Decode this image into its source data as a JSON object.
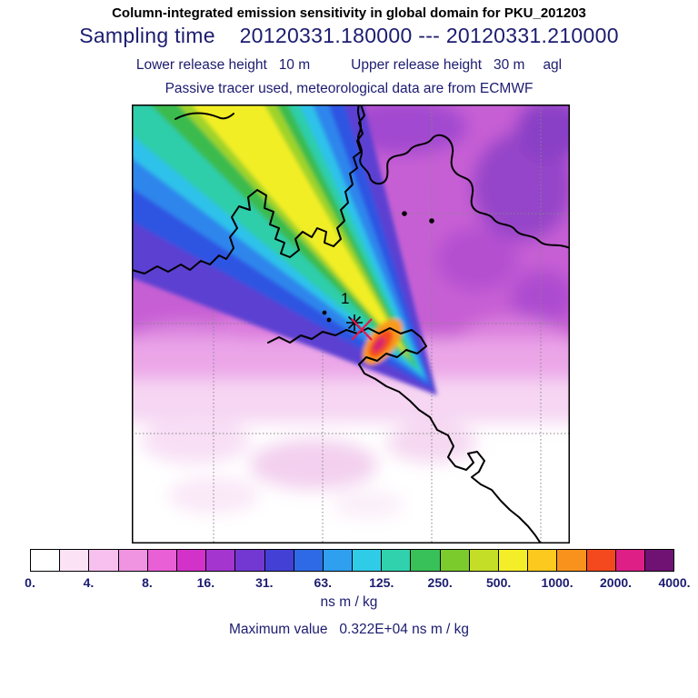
{
  "header": {
    "title": "Column-integrated emission sensitivity in global domain for PKU_201203",
    "sampling_line": "Sampling time    20120331.180000 --- 20120331.210000",
    "lower_release": "Lower release height   10 m",
    "upper_release": "Upper release height   30 m",
    "agl": "agl",
    "tracer_line": "Passive tracer used, meteorological data are from ECMWF"
  },
  "map": {
    "release_point_label": "1"
  },
  "colorbar": {
    "labels": [
      "0.",
      "4.",
      "8.",
      "16.",
      "31.",
      "63.",
      "125.",
      "250.",
      "500.",
      "1000.",
      "2000.",
      "4000."
    ],
    "colors": [
      "#ffffff",
      "#fbe3f5",
      "#f7c0ee",
      "#f094e2",
      "#e95fd6",
      "#d332ca",
      "#a435cf",
      "#7338d2",
      "#4340d6",
      "#2f6ae6",
      "#2f9ff0",
      "#2fcce8",
      "#2fd2ac",
      "#38c158",
      "#7ccb2c",
      "#c4de28",
      "#f4ee28",
      "#fcc91e",
      "#f8921c",
      "#f4481e",
      "#dd1f86",
      "#6f1273"
    ],
    "units": "ns m / kg"
  },
  "footer": {
    "max_line": "Maximum value   0.322E+04 ns m / kg"
  },
  "chart_data": {
    "type": "heatmap",
    "title": "Column-integrated emission sensitivity in global domain for PKU_201203",
    "sampling_start": "20120331.180000",
    "sampling_end": "20120331.210000",
    "lower_release_height": "10 m",
    "upper_release_height": "30 m",
    "height_reference": "agl",
    "tracer": "Passive tracer",
    "meteorology": "ECMWF",
    "units": "ns m / kg",
    "maximum_value": "0.322E+04 ns m / kg",
    "colorbar_levels": [
      0,
      4,
      8,
      16,
      31,
      63,
      125,
      250,
      500,
      1000,
      2000,
      4000
    ],
    "legend_position": "bottom",
    "release_point": {
      "label": "1",
      "marker": "black asterisk with red cross",
      "map_fraction_x": 0.52,
      "map_fraction_y": 0.5
    },
    "plume_description": "Emission sensitivity plume extends from the release point near the domain center toward the northwest corner; maximum sensitivity (red/orange bands, >1000 ns m/kg) lies just southeast of the release marker near the coast, decreasing outward through yellow, green, cyan, blue and purple contour bands; diffuse purple/pink background (4-16 ns m/kg) covers the northern half of the domain, fading to white in the south."
  }
}
